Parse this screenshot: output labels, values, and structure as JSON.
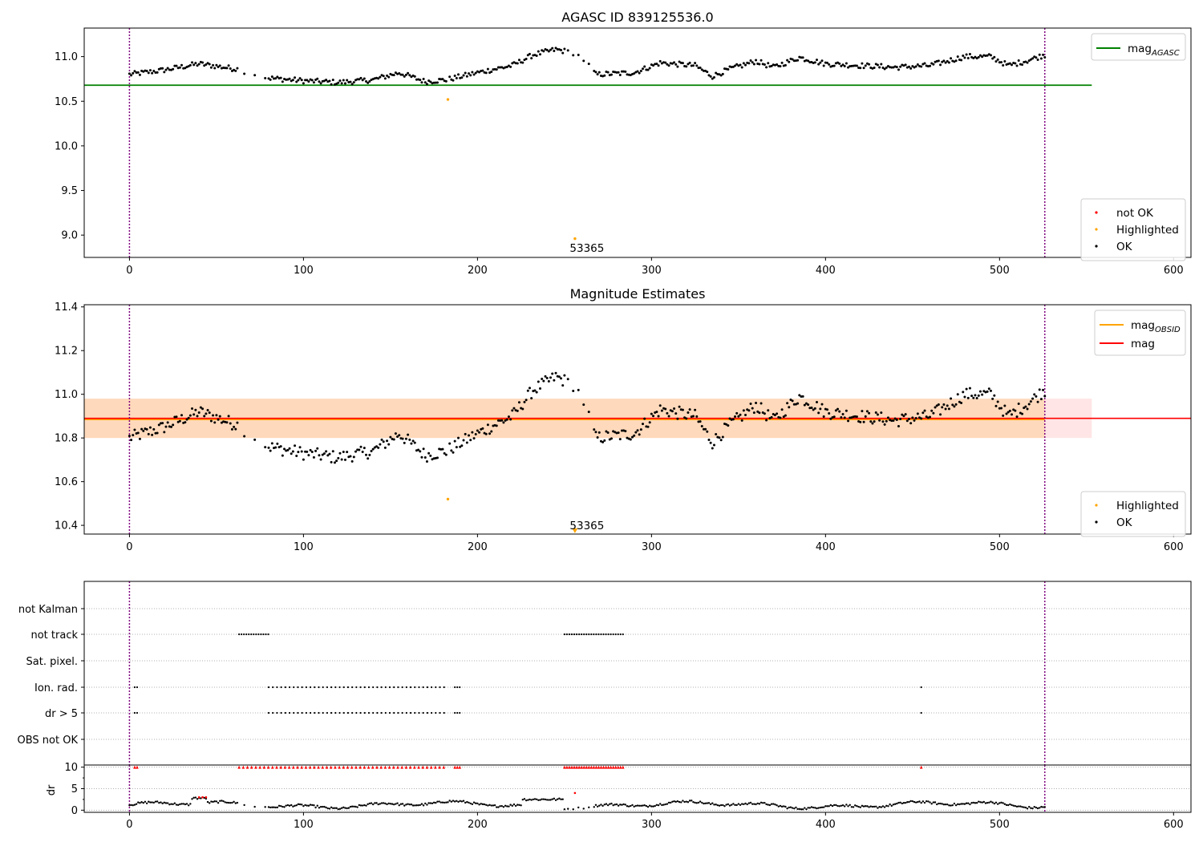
{
  "chart_data": [
    {
      "type": "scatter",
      "title": "AGASC ID 839125536.0",
      "xlim": [
        -26,
        610
      ],
      "ylim": [
        8.75,
        11.32
      ],
      "xticks": [
        0,
        100,
        200,
        300,
        400,
        500,
        600
      ],
      "yticks": [
        9.0,
        9.5,
        10.0,
        10.5,
        11.0
      ],
      "grid": false,
      "vlines": [
        0,
        526
      ],
      "hline": {
        "y": 10.68,
        "color": "#008000",
        "xmax": 553
      },
      "legend_upper": {
        "location": "upper-right",
        "entries": [
          {
            "label": "mag",
            "sub": "AGASC",
            "color": "#008000",
            "kind": "line"
          }
        ]
      },
      "legend_lower": {
        "location": "lower-right",
        "entries": [
          {
            "label": "not OK",
            "color": "#ff0000",
            "kind": "point"
          },
          {
            "label": "Highlighted",
            "color": "#ffa500",
            "kind": "point"
          },
          {
            "label": "OK",
            "color": "#000000",
            "kind": "point"
          }
        ]
      },
      "highlighted_points": [
        [
          183,
          10.52
        ],
        [
          256,
          8.96
        ]
      ],
      "annotations": [
        {
          "x": 256,
          "y": 8.84,
          "text": "53365"
        }
      ],
      "ok_trend": [
        [
          0,
          10.8
        ],
        [
          20,
          10.85
        ],
        [
          40,
          10.92
        ],
        [
          62,
          10.86
        ],
        [
          80,
          10.76
        ],
        [
          100,
          10.73
        ],
        [
          120,
          10.71
        ],
        [
          140,
          10.74
        ],
        [
          155,
          10.82
        ],
        [
          170,
          10.72
        ],
        [
          182,
          10.74
        ],
        [
          200,
          10.82
        ],
        [
          220,
          10.9
        ],
        [
          232,
          11.02
        ],
        [
          245,
          11.08
        ],
        [
          256,
          11.04
        ],
        [
          262,
          10.95
        ],
        [
          268,
          10.8
        ],
        [
          290,
          10.82
        ],
        [
          305,
          10.93
        ],
        [
          325,
          10.9
        ],
        [
          335,
          10.78
        ],
        [
          345,
          10.86
        ],
        [
          360,
          10.95
        ],
        [
          370,
          10.88
        ],
        [
          385,
          10.99
        ],
        [
          400,
          10.92
        ],
        [
          420,
          10.9
        ],
        [
          440,
          10.88
        ],
        [
          460,
          10.9
        ],
        [
          480,
          11.0
        ],
        [
          495,
          11.0
        ],
        [
          505,
          10.9
        ],
        [
          515,
          10.95
        ],
        [
          526,
          11.02
        ]
      ]
    },
    {
      "type": "scatter",
      "title": "Magnitude Estimates",
      "xlim": [
        -26,
        610
      ],
      "ylim": [
        10.36,
        11.41
      ],
      "xticks": [
        0,
        100,
        200,
        300,
        400,
        500,
        600
      ],
      "yticks": [
        10.4,
        10.6,
        10.8,
        11.0,
        11.2,
        11.4
      ],
      "grid": false,
      "vlines": [
        0,
        526
      ],
      "band_mag": {
        "center": 10.89,
        "low": 10.8,
        "high": 10.98,
        "color": "#ff0000"
      },
      "band_obsid": {
        "center": 10.885,
        "low": 10.8,
        "high": 10.98,
        "color": "#ffa500",
        "xmax": 526
      },
      "legend_upper": {
        "location": "upper-right",
        "entries": [
          {
            "label": "mag",
            "sub": "OBSID",
            "color": "#ffa500",
            "kind": "line"
          },
          {
            "label": "mag",
            "sub": "",
            "color": "#ff0000",
            "kind": "line"
          }
        ]
      },
      "legend_lower": {
        "location": "lower-right",
        "entries": [
          {
            "label": "Highlighted",
            "color": "#ffa500",
            "kind": "point"
          },
          {
            "label": "OK",
            "color": "#000000",
            "kind": "point"
          }
        ]
      },
      "highlighted_points": [
        [
          183,
          10.52
        ]
      ],
      "offscale_marker": {
        "x": 256,
        "y": 10.375
      },
      "annotations": [
        {
          "x": 256,
          "y": 10.4,
          "text": "53365"
        }
      ]
    },
    {
      "type": "scatter",
      "title": "",
      "xlim": [
        -26,
        610
      ],
      "xticks": [
        0,
        100,
        200,
        300,
        400,
        500,
        600
      ],
      "vlines": [
        0,
        526
      ],
      "flag_rows": [
        {
          "label": "not Kalman",
          "ranges": []
        },
        {
          "label": "not track",
          "ranges": [
            [
              63,
              80
            ],
            [
              250,
              284
            ]
          ]
        },
        {
          "label": "Sat. pixel.",
          "ranges": []
        },
        {
          "label": "Ion. rad.",
          "ranges": [
            [
              3,
              5
            ],
            [
              80,
              181
            ],
            [
              187,
              191
            ],
            [
              455,
              455
            ]
          ]
        },
        {
          "label": "dr > 5",
          "ranges": [
            [
              3,
              5
            ],
            [
              80,
              181
            ],
            [
              187,
              191
            ],
            [
              455,
              455
            ]
          ]
        },
        {
          "label": "OBS not OK",
          "ranges": []
        }
      ],
      "dr_panel": {
        "ylabel": "dr",
        "ylim": [
          -0.5,
          10.5
        ],
        "yticks": [
          0,
          5,
          10
        ],
        "cap_value": 10,
        "capped_ranges": [
          [
            3,
            5
          ],
          [
            63,
            181
          ],
          [
            187,
            191
          ],
          [
            250,
            284
          ],
          [
            455,
            455
          ]
        ]
      }
    }
  ]
}
